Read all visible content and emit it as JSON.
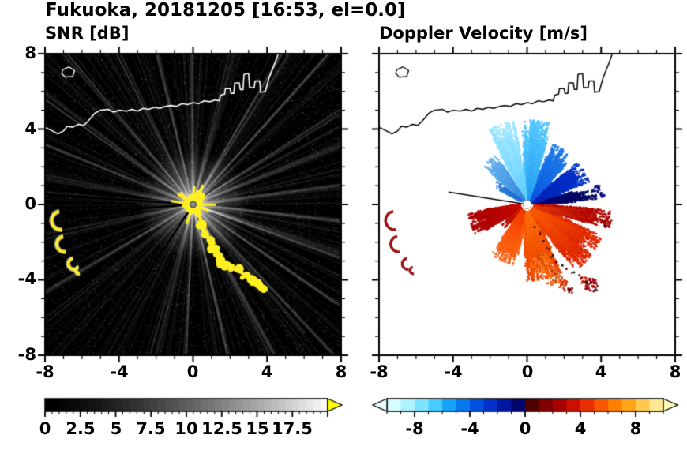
{
  "chart_data": {
    "type": "heatmap",
    "title": "Fukuoka, 20181205 [16:53, el=0.0]",
    "station": "Fukuoka",
    "date": "20181205",
    "time": "16:53",
    "elevation_deg": "0.0",
    "panels": [
      {
        "title": "SNR [dB]",
        "xlim": [
          -8,
          8
        ],
        "ylim": [
          -8,
          8
        ],
        "x_tick_labels": [
          "-8",
          "-4",
          "0",
          "4",
          "8"
        ],
        "y_tick_labels": [
          "8",
          "4",
          "0",
          "-4",
          "-8"
        ],
        "background": "#000000",
        "coast_color": "#ffffff",
        "colorbar": {
          "range": [
            0,
            20
          ],
          "segment_step": 0.5,
          "tick_values": [
            0,
            2.5,
            5,
            7.5,
            10,
            12.5,
            15,
            17.5
          ],
          "tick_labels": [
            "0",
            "2.5",
            "5",
            "7.5",
            "10",
            "12.5",
            "15",
            "17.5"
          ],
          "gradient": [
            "#000000",
            "#f8f8f8"
          ],
          "over_arrow_color": "#ffff00"
        }
      },
      {
        "title": "Doppler Velocity [m/s]",
        "xlim": [
          -8,
          8
        ],
        "ylim": [
          -8,
          8
        ],
        "x_tick_labels": [
          "-8",
          "-4",
          "0",
          "4",
          "8"
        ],
        "y_tick_labels": [
          "8",
          "4",
          "0",
          "-4",
          "-8"
        ],
        "background": "#ffffff",
        "coast_color": "#000000",
        "colorbar": {
          "range": [
            -10,
            10
          ],
          "segment_step": 1,
          "tick_values": [
            -8,
            -4,
            0,
            4,
            8
          ],
          "tick_labels": [
            "-8",
            "-4",
            "0",
            "4",
            "8"
          ],
          "segment_colors": [
            "#d8fbff",
            "#aef2ff",
            "#7ce4ff",
            "#46ccff",
            "#18a4f8",
            "#0878f0",
            "#0050e0",
            "#0030c8",
            "#0018a0",
            "#000870",
            "#500000",
            "#800000",
            "#a80000",
            "#cc1000",
            "#e83000",
            "#f85800",
            "#ff8000",
            "#ffa418",
            "#ffc84e",
            "#ffe890"
          ],
          "under_arrow_color": "#eaffff",
          "over_arrow_color": "#ffffbb"
        }
      }
    ],
    "coastline": [
      [
        -8,
        4.1
      ],
      [
        -7.6,
        3.9
      ],
      [
        -7.3,
        3.75
      ],
      [
        -7,
        3.9
      ],
      [
        -6.8,
        4.15
      ],
      [
        -6.5,
        4.1
      ],
      [
        -6.2,
        4.25
      ],
      [
        -5.9,
        4.2
      ],
      [
        -5.6,
        4.5
      ],
      [
        -5.3,
        4.85
      ],
      [
        -5,
        5
      ],
      [
        -4.6,
        5.05
      ],
      [
        -4.3,
        4.9
      ],
      [
        -4,
        5
      ],
      [
        -3.6,
        4.95
      ],
      [
        -3.3,
        5.05
      ],
      [
        -3,
        4.95
      ],
      [
        -2.7,
        5.1
      ],
      [
        -2.4,
        5.05
      ],
      [
        -2.1,
        5.15
      ],
      [
        -1.8,
        5.1
      ],
      [
        -1.5,
        5.2
      ],
      [
        -1.2,
        5.25
      ],
      [
        -0.9,
        5.2
      ],
      [
        -0.6,
        5.35
      ],
      [
        -0.3,
        5.3
      ],
      [
        0,
        5.4
      ],
      [
        0.3,
        5.35
      ],
      [
        0.6,
        5.5
      ],
      [
        0.9,
        5.45
      ],
      [
        1.2,
        5.55
      ],
      [
        1.4,
        5.5
      ],
      [
        1.5,
        5.8
      ],
      [
        1.7,
        5.85
      ],
      [
        1.75,
        6.15
      ],
      [
        2,
        6.15
      ],
      [
        2.05,
        5.9
      ],
      [
        2.2,
        5.9
      ],
      [
        2.25,
        6.45
      ],
      [
        2.5,
        6.45
      ],
      [
        2.55,
        6.1
      ],
      [
        2.7,
        6.1
      ],
      [
        2.75,
        6.9
      ],
      [
        3,
        6.95
      ],
      [
        3.05,
        6.2
      ],
      [
        3.3,
        6.2
      ],
      [
        3.35,
        6.55
      ],
      [
        3.6,
        6.55
      ],
      [
        3.65,
        5.95
      ],
      [
        3.9,
        6
      ],
      [
        4.1,
        6.7
      ],
      [
        4.3,
        7.2
      ],
      [
        4.5,
        7.7
      ],
      [
        4.6,
        8
      ]
    ],
    "island": [
      [
        -7.05,
        7.15
      ],
      [
        -6.7,
        7.3
      ],
      [
        -6.4,
        7.1
      ],
      [
        -6.5,
        6.8
      ],
      [
        -6.9,
        6.75
      ],
      [
        -7.1,
        6.95
      ]
    ],
    "south_coast_echo": [
      [
        0.35,
        -1.1
      ],
      [
        0.6,
        -1.5
      ],
      [
        0.9,
        -1.9
      ],
      [
        1.1,
        -2.3
      ],
      [
        1.35,
        -2.7
      ],
      [
        1.5,
        -3
      ],
      [
        1.8,
        -3.2
      ],
      [
        2.1,
        -3.4
      ],
      [
        2.45,
        -3.5
      ],
      [
        2.8,
        -3.75
      ],
      [
        3.1,
        -4
      ],
      [
        3.45,
        -4.15
      ],
      [
        3.7,
        -4.45
      ]
    ],
    "west_echoes": [
      {
        "x": -7.15,
        "y": -0.85,
        "r": 0.5
      },
      {
        "x": -6.95,
        "y": -2.1,
        "r": 0.42
      },
      {
        "x": -6.45,
        "y": -3.15,
        "r": 0.3
      },
      {
        "x": -6.15,
        "y": -3.5,
        "r": 0.18
      }
    ],
    "snr_field": {
      "noise_dots": 5200,
      "faint_ray_count": 230,
      "bright_ray_angles": [
        8,
        22,
        33,
        47,
        60,
        76,
        90,
        103,
        117,
        131,
        144,
        158,
        170,
        210,
        255,
        268,
        283,
        297,
        312,
        326,
        341,
        353
      ],
      "blocked_ray_angles": [
        176,
        184,
        237
      ],
      "echo_color": "#ffee22",
      "core_dot_color": "#8a8a8a"
    },
    "velocity_field": {
      "negative_regions": [
        {
          "az0": 2,
          "az1": 16,
          "r0": 0.5,
          "rbase": 2.2,
          "rvar": 1.6,
          "spike": 0.15,
          "inner": "#000080",
          "outer": "#000a60"
        },
        {
          "az0": 16,
          "az1": 42,
          "r0": 0.3,
          "rbase": 2.4,
          "rvar": 1.2,
          "spike": 0.2,
          "inner": "#0020b0",
          "outer": "#0033cc"
        },
        {
          "az0": 42,
          "az1": 70,
          "r0": 0.3,
          "rbase": 2.5,
          "rvar": 1.0,
          "spike": 0.3,
          "inner": "#0a50dd",
          "outer": "#1e7ae8"
        },
        {
          "az0": 70,
          "az1": 96,
          "r0": 0.3,
          "rbase": 3.0,
          "rvar": 1.5,
          "spike": 0.5,
          "inner": "#1e9aee",
          "outer": "#55c8ff"
        },
        {
          "az0": 96,
          "az1": 120,
          "r0": 0.3,
          "rbase": 2.8,
          "rvar": 1.7,
          "spike": 0.5,
          "inner": "#58ccff",
          "outer": "#a0e8ff"
        },
        {
          "az0": 120,
          "az1": 142,
          "r0": 0.3,
          "rbase": 2.2,
          "rvar": 0.9,
          "spike": 0.25,
          "inner": "#2d7fd8",
          "outer": "#5fb0ee"
        },
        {
          "az0": 142,
          "az1": 154,
          "r0": 0.4,
          "rbase": 1.3,
          "rvar": 0.8,
          "spike": 0.15,
          "inner": "#1b5fc8",
          "outer": "#2d7fd8"
        }
      ],
      "positive_regions": [
        {
          "az0": 184,
          "az1": 214,
          "r0": 0.4,
          "rbase": 2.1,
          "rvar": 1.1,
          "spike": 0.35,
          "inner": "#cc1100",
          "outer": "#aa0000"
        },
        {
          "az0": 214,
          "az1": 230,
          "r0": 0.4,
          "rbase": 1.0,
          "rvar": 0.7,
          "spike": 0.15,
          "inner": "#dd2200",
          "outer": "#bb1100"
        },
        {
          "az0": 230,
          "az1": 264,
          "r0": 0.4,
          "rbase": 2.3,
          "rvar": 1.0,
          "spike": 0.3,
          "inner": "#ee3300",
          "outer": "#ff6611"
        },
        {
          "az0": 264,
          "az1": 302,
          "r0": 0.4,
          "rbase": 2.9,
          "rvar": 1.2,
          "spike": 0.35,
          "inner": "#ff7711",
          "outer": "#ee4400"
        },
        {
          "az0": 302,
          "az1": 342,
          "r0": 0.4,
          "rbase": 3.1,
          "rvar": 1.3,
          "spike": 0.4,
          "inner": "#ff6600",
          "outer": "#dd2200"
        },
        {
          "az0": 342,
          "az1": 358,
          "r0": 0.4,
          "rbase": 3.3,
          "rvar": 1.2,
          "spike": 0.3,
          "inner": "#ee4411",
          "outer": "#aa0000"
        }
      ],
      "blobs": [
        {
          "x": 0.75,
          "y": -3.15,
          "r": 0.55,
          "color": "#ff7711"
        },
        {
          "x": 1.45,
          "y": -3.95,
          "r": 0.45,
          "color": "#ff6611"
        },
        {
          "x": 2,
          "y": -4.3,
          "r": 0.3,
          "color": "#dd3300"
        },
        {
          "x": 2.35,
          "y": -4.55,
          "r": 0.18,
          "color": "#990000"
        },
        {
          "x": 3.45,
          "y": -4.25,
          "r": 0.4,
          "color": "#aa0000"
        },
        {
          "x": 3.05,
          "y": -4,
          "r": 0.2,
          "color": "#cc2200"
        },
        {
          "x": 3.85,
          "y": 0.85,
          "r": 0.22,
          "color": "#000080"
        },
        {
          "x": 4.05,
          "y": 0.5,
          "r": 0.13,
          "color": "#000099"
        },
        {
          "x": 4.35,
          "y": -0.95,
          "r": 0.3,
          "color": "#990000"
        }
      ],
      "blocked_ray_angles": [
        171
      ],
      "west_echo_color": "#991111",
      "center_dot_color": "#ffffff"
    }
  }
}
